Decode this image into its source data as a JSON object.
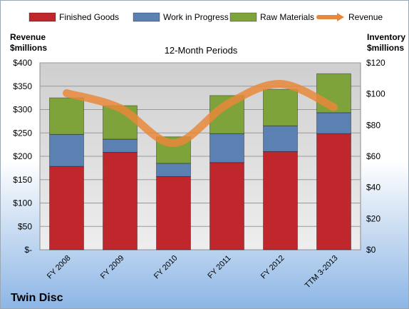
{
  "chart_data": {
    "type": "bar",
    "stacked": true,
    "title": "12-Month Periods",
    "categories": [
      "FY 2008",
      "FY 2009",
      "FY 2010",
      "FY 2011",
      "FY 2012",
      "TTM 3-2013"
    ],
    "series": [
      {
        "name": "Finished Goods",
        "axis": "right",
        "color": "#c0272d",
        "values": [
          53.5,
          62.5,
          47,
          56,
          63,
          74.5
        ]
      },
      {
        "name": "Work in Progress",
        "axis": "right",
        "color": "#5b80b2",
        "values": [
          20.5,
          8.5,
          8.5,
          18.5,
          16.5,
          13.5
        ]
      },
      {
        "name": "Raw Materials",
        "axis": "right",
        "color": "#7ea33b",
        "values": [
          23.5,
          21.5,
          17,
          24.5,
          23.5,
          25
        ]
      },
      {
        "name": "Revenue",
        "axis": "left",
        "type": "line",
        "color": "#e8883a",
        "values": [
          335,
          303,
          228,
          311,
          355,
          305
        ]
      }
    ],
    "left_axis": {
      "label": "Revenue\n$millions",
      "ylim": [
        0,
        400
      ],
      "ticks": [
        0,
        50,
        100,
        150,
        200,
        250,
        300,
        350,
        400
      ],
      "tick_labels": [
        "$-",
        "$50",
        "$100",
        "$150",
        "$200",
        "$250",
        "$300",
        "$350",
        "$400"
      ]
    },
    "right_axis": {
      "label": "Inventory\n$millions",
      "ylim": [
        0,
        120
      ],
      "ticks": [
        0,
        20,
        40,
        60,
        80,
        100,
        120
      ],
      "tick_labels": [
        "$0",
        "$20",
        "$40",
        "$60",
        "$80",
        "$100",
        "$120"
      ]
    },
    "legend_position": "top",
    "grid": true,
    "company": "Twin Disc"
  }
}
